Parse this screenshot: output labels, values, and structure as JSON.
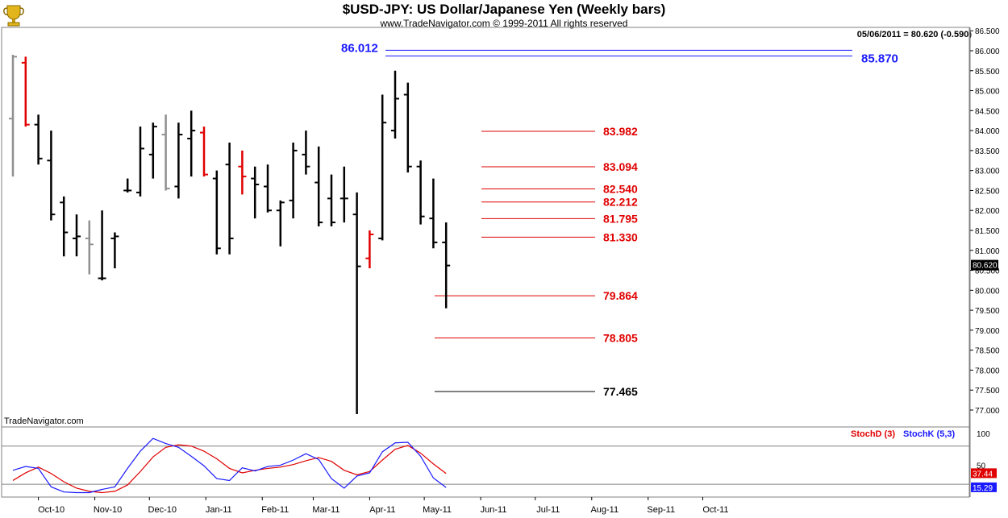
{
  "chart_data": {
    "type": "ohlc",
    "title": "$USD-JPY:  US Dollar/Japanese Yen  (Weekly bars)",
    "subtitle": "www.TradeNavigator.com © 1999-2011 All rights reserved",
    "readout": "05/06/2011 = 80.620 (-0.590)",
    "watermark": "TradeNavigator.com",
    "ylim": [
      76.8,
      86.6
    ],
    "y_ticks": [
      "77.000",
      "77.500",
      "78.000",
      "78.500",
      "79.000",
      "79.500",
      "80.000",
      "80.500",
      "81.000",
      "81.500",
      "82.000",
      "82.500",
      "83.000",
      "83.500",
      "84.000",
      "84.500",
      "85.000",
      "85.500",
      "86.000",
      "86.500"
    ],
    "last_price": "80.620",
    "x_ticks": [
      "Oct-10",
      "Nov-10",
      "Dec-10",
      "Jan-11",
      "Feb-11",
      "Mar-11",
      "Apr-11",
      "May-11",
      "Jun-11",
      "Jul-11",
      "Aug-11",
      "Sep-11",
      "Oct-11"
    ],
    "bars": [
      {
        "date": "2010-09-17",
        "open": 84.3,
        "high": 85.9,
        "low": 82.85,
        "close": 85.85,
        "color": "#909090"
      },
      {
        "date": "2010-09-24",
        "open": 85.7,
        "high": 85.85,
        "low": 84.1,
        "close": 84.15,
        "color": "#e00000"
      },
      {
        "date": "2010-10-01",
        "open": 84.15,
        "high": 84.4,
        "low": 83.15,
        "close": 83.3,
        "color": "#000000"
      },
      {
        "date": "2010-10-08",
        "open": 83.25,
        "high": 84.0,
        "low": 81.75,
        "close": 81.9,
        "color": "#000000"
      },
      {
        "date": "2010-10-15",
        "open": 82.2,
        "high": 82.35,
        "low": 80.85,
        "close": 81.45,
        "color": "#000000"
      },
      {
        "date": "2010-10-22",
        "open": 81.3,
        "high": 81.9,
        "low": 80.85,
        "close": 81.35,
        "color": "#000000"
      },
      {
        "date": "2010-10-29",
        "open": 81.3,
        "high": 81.75,
        "low": 80.4,
        "close": 81.15,
        "color": "#909090"
      },
      {
        "date": "2010-11-05",
        "open": 80.3,
        "high": 82.0,
        "low": 80.25,
        "close": 80.3,
        "color": "#000000"
      },
      {
        "date": "2010-11-12",
        "open": 81.3,
        "high": 81.45,
        "low": 80.55,
        "close": 81.35,
        "color": "#000000"
      },
      {
        "date": "2010-11-19",
        "open": 82.5,
        "high": 82.8,
        "low": 82.45,
        "close": 82.5,
        "color": "#000000"
      },
      {
        "date": "2010-11-26",
        "open": 82.45,
        "high": 84.1,
        "low": 82.35,
        "close": 83.55,
        "color": "#000000"
      },
      {
        "date": "2010-12-03",
        "open": 83.4,
        "high": 84.2,
        "low": 82.8,
        "close": 84.1,
        "color": "#000000"
      },
      {
        "date": "2010-12-10",
        "open": 83.9,
        "high": 84.4,
        "low": 82.5,
        "close": 82.55,
        "color": "#909090"
      },
      {
        "date": "2010-12-17",
        "open": 82.6,
        "high": 84.2,
        "low": 82.3,
        "close": 83.9,
        "color": "#000000"
      },
      {
        "date": "2010-12-24",
        "open": 83.8,
        "high": 84.5,
        "low": 82.85,
        "close": 84.0,
        "color": "#000000"
      },
      {
        "date": "2010-12-31",
        "open": 83.95,
        "high": 84.1,
        "low": 82.85,
        "close": 82.9,
        "color": "#e00000"
      },
      {
        "date": "2011-01-07",
        "open": 82.8,
        "high": 83.0,
        "low": 80.9,
        "close": 81.05,
        "color": "#000000"
      },
      {
        "date": "2011-01-14",
        "open": 83.15,
        "high": 83.7,
        "low": 80.9,
        "close": 81.3,
        "color": "#000000"
      },
      {
        "date": "2011-01-21",
        "open": 83.1,
        "high": 83.5,
        "low": 82.4,
        "close": 82.85,
        "color": "#e00000"
      },
      {
        "date": "2011-01-28",
        "open": 82.8,
        "high": 83.1,
        "low": 81.8,
        "close": 82.65,
        "color": "#000000"
      },
      {
        "date": "2011-02-04",
        "open": 82.6,
        "high": 83.15,
        "low": 81.95,
        "close": 82.0,
        "color": "#000000"
      },
      {
        "date": "2011-02-11",
        "open": 82.0,
        "high": 82.25,
        "low": 81.1,
        "close": 82.2,
        "color": "#000000"
      },
      {
        "date": "2011-02-18",
        "open": 82.25,
        "high": 83.7,
        "low": 81.8,
        "close": 83.5,
        "color": "#000000"
      },
      {
        "date": "2011-02-25",
        "open": 83.4,
        "high": 84.0,
        "low": 82.9,
        "close": 83.1,
        "color": "#000000"
      },
      {
        "date": "2011-03-04",
        "open": 82.7,
        "high": 83.6,
        "low": 81.6,
        "close": 81.7,
        "color": "#000000"
      },
      {
        "date": "2011-03-11",
        "open": 82.3,
        "high": 82.9,
        "low": 81.6,
        "close": 81.7,
        "color": "#000000"
      },
      {
        "date": "2011-03-18",
        "open": 82.3,
        "high": 83.1,
        "low": 81.7,
        "close": 82.3,
        "color": "#000000"
      },
      {
        "date": "2011-03-25",
        "open": 81.9,
        "high": 82.45,
        "low": 76.9,
        "close": 80.6,
        "color": "#000000"
      },
      {
        "date": "2011-04-01",
        "open": 80.8,
        "high": 81.5,
        "low": 80.55,
        "close": 81.4,
        "color": "#e00000"
      },
      {
        "date": "2011-04-08",
        "open": 81.3,
        "high": 84.9,
        "low": 81.25,
        "close": 84.2,
        "color": "#000000"
      },
      {
        "date": "2011-04-15",
        "open": 84.0,
        "high": 85.5,
        "low": 83.8,
        "close": 84.8,
        "color": "#000000"
      },
      {
        "date": "2011-04-22",
        "open": 84.9,
        "high": 85.2,
        "low": 82.95,
        "close": 83.1,
        "color": "#000000"
      },
      {
        "date": "2011-04-29",
        "open": 83.1,
        "high": 83.25,
        "low": 81.65,
        "close": 81.85,
        "color": "#000000"
      },
      {
        "date": "2011-05-06",
        "open": 81.8,
        "high": 82.8,
        "low": 81.05,
        "close": 81.2,
        "color": "#000000"
      },
      {
        "date": "2011-05-13",
        "open": 81.2,
        "high": 81.7,
        "low": 79.55,
        "close": 80.62,
        "color": "#000000"
      }
    ],
    "levels": [
      {
        "value": "86.012",
        "color": "#1a1aff"
      },
      {
        "value": "85.870",
        "color": "#1a1aff"
      },
      {
        "value": "83.982",
        "color": "#e00000"
      },
      {
        "value": "83.094",
        "color": "#e00000"
      },
      {
        "value": "82.540",
        "color": "#e00000"
      },
      {
        "value": "82.212",
        "color": "#e00000"
      },
      {
        "value": "81.795",
        "color": "#e00000"
      },
      {
        "value": "81.330",
        "color": "#e00000"
      },
      {
        "value": "79.864",
        "color": "#e00000"
      },
      {
        "value": "78.805",
        "color": "#e00000"
      },
      {
        "value": "77.465",
        "color": "#000000"
      }
    ],
    "indicator": {
      "ylim": [
        0,
        110
      ],
      "y_ticks": [
        "100",
        "50"
      ],
      "guide_levels": [
        80,
        20
      ],
      "series": [
        {
          "name": "StochD (3)",
          "color": "#e00000",
          "last": "37.44",
          "values": [
            26,
            38,
            47,
            37,
            24,
            14,
            9,
            7,
            9,
            19,
            40,
            63,
            78,
            82,
            80,
            72,
            60,
            45,
            38,
            42,
            45,
            47,
            51,
            57,
            62,
            56,
            42,
            35,
            40,
            58,
            75,
            81,
            69,
            52,
            37
          ]
        },
        {
          "name": "StochK (5,3)",
          "color": "#1a1aff",
          "last": "15.29",
          "values": [
            42,
            48,
            45,
            16,
            8,
            7,
            7,
            12,
            16,
            45,
            72,
            92,
            84,
            78,
            64,
            49,
            29,
            26,
            46,
            41,
            48,
            50,
            58,
            68,
            59,
            29,
            14,
            33,
            38,
            71,
            85,
            86,
            64,
            30,
            15
          ]
        }
      ]
    }
  }
}
